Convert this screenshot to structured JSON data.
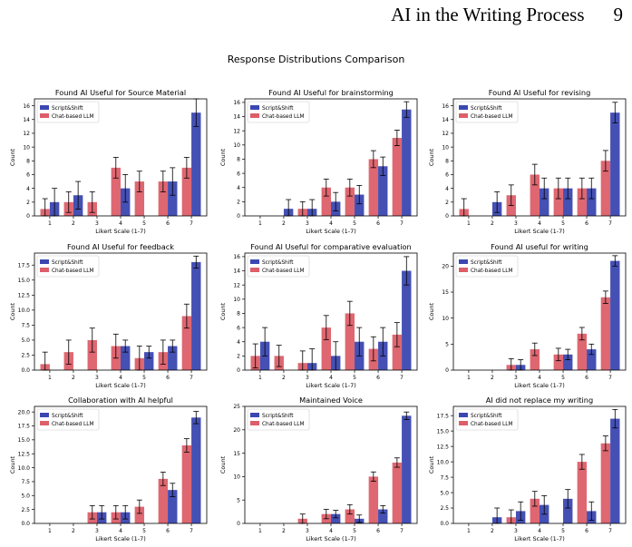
{
  "header": {
    "title": "AI in the Writing Process",
    "page_number": "9"
  },
  "figure_title": "Response Distributions Comparison",
  "colors": {
    "script_shift": "#3b47b0",
    "chat_llm": "#dc5f69"
  },
  "chart_data": [
    {
      "type": "bar",
      "title": "Found AI Useful for Source Material",
      "xlabel": "Likert Scale (1-7)",
      "ylabel": "Count",
      "categories": [
        "1",
        "2",
        "3",
        "4",
        "5",
        "6",
        "7"
      ],
      "ylim": [
        0,
        17
      ],
      "yticks": [
        0,
        2,
        4,
        6,
        8,
        10,
        12,
        14,
        16
      ],
      "ytick_labels": [
        "0",
        "2",
        "4",
        "6",
        "8",
        "10",
        "12",
        "14",
        "16"
      ],
      "legend": "top-left",
      "series": [
        {
          "name": "Script&Shift",
          "values": [
            2,
            3,
            0,
            4,
            0,
            5,
            15
          ],
          "errors": [
            2,
            2,
            0,
            2,
            0,
            2,
            2
          ]
        },
        {
          "name": "Chat-based LLM",
          "values": [
            1,
            2,
            2,
            7,
            5,
            5,
            7
          ],
          "errors": [
            1.5,
            1.5,
            1.5,
            1.5,
            1.5,
            1.5,
            1.5
          ]
        }
      ]
    },
    {
      "type": "bar",
      "title": "Found AI Useful for brainstorming",
      "xlabel": "Likert Scale (1-7)",
      "ylabel": "Count",
      "categories": [
        "1",
        "2",
        "3",
        "4",
        "5",
        "6",
        "7"
      ],
      "ylim": [
        0,
        16.5
      ],
      "yticks": [
        0,
        2,
        4,
        6,
        8,
        10,
        12,
        14,
        16
      ],
      "ytick_labels": [
        "0",
        "2",
        "4",
        "6",
        "8",
        "10",
        "12",
        "14",
        "16"
      ],
      "legend": "top-left",
      "series": [
        {
          "name": "Script&Shift",
          "values": [
            0,
            1,
            1,
            2,
            3,
            7,
            15
          ],
          "errors": [
            0,
            1.3,
            1.3,
            1.3,
            1.3,
            1.3,
            1.1
          ]
        },
        {
          "name": "Chat-based LLM",
          "values": [
            0,
            0,
            1,
            4,
            4,
            8,
            11
          ],
          "errors": [
            0,
            0,
            1,
            1.2,
            1.2,
            1.2,
            1.1
          ]
        }
      ]
    },
    {
      "type": "bar",
      "title": "Found AI Useful for revising",
      "xlabel": "Likert Scale (1-7)",
      "ylabel": "Count",
      "categories": [
        "1",
        "2",
        "3",
        "4",
        "5",
        "6",
        "7"
      ],
      "ylim": [
        0,
        17
      ],
      "yticks": [
        0,
        2,
        4,
        6,
        8,
        10,
        12,
        14,
        16
      ],
      "ytick_labels": [
        "0",
        "2",
        "4",
        "6",
        "8",
        "10",
        "12",
        "14",
        "16"
      ],
      "legend": "top-left",
      "series": [
        {
          "name": "Script&Shift",
          "values": [
            0,
            2,
            0,
            4,
            4,
            4,
            15
          ],
          "errors": [
            0,
            1.5,
            0,
            1.5,
            1.5,
            1.5,
            1.5
          ]
        },
        {
          "name": "Chat-based LLM",
          "values": [
            1,
            0,
            3,
            6,
            4,
            4,
            8
          ],
          "errors": [
            1.5,
            0,
            1.5,
            1.5,
            1.5,
            1.5,
            1.5
          ]
        }
      ]
    },
    {
      "type": "bar",
      "title": "Found AI Useful for feedback",
      "xlabel": "Likert Scale (1-7)",
      "ylabel": "Count",
      "categories": [
        "1",
        "2",
        "3",
        "4",
        "5",
        "6",
        "7"
      ],
      "ylim": [
        0,
        19.5
      ],
      "yticks": [
        0,
        2.5,
        5,
        7.5,
        10,
        12.5,
        15,
        17.5
      ],
      "ytick_labels": [
        "0.0",
        "2.5",
        "5.0",
        "7.5",
        "10.0",
        "12.5",
        "15.0",
        "17.5"
      ],
      "legend": "top-left",
      "series": [
        {
          "name": "Script&Shift",
          "values": [
            0,
            0,
            0,
            4,
            3,
            4,
            18
          ],
          "errors": [
            0,
            0,
            0,
            1,
            1,
            1,
            1
          ]
        },
        {
          "name": "Chat-based LLM",
          "values": [
            1,
            3,
            5,
            4,
            2,
            3,
            9
          ],
          "errors": [
            2,
            2,
            2,
            2,
            2,
            2,
            2
          ]
        }
      ]
    },
    {
      "type": "bar",
      "title": "Found AI Useful for comparative evaluation",
      "xlabel": "Likert Scale (1-7)",
      "ylabel": "Count",
      "categories": [
        "1",
        "2",
        "3",
        "4",
        "5",
        "6",
        "7"
      ],
      "ylim": [
        0,
        16.5
      ],
      "yticks": [
        0,
        2,
        4,
        6,
        8,
        10,
        12,
        14,
        16
      ],
      "ytick_labels": [
        "0",
        "2",
        "4",
        "6",
        "8",
        "10",
        "12",
        "14",
        "16"
      ],
      "legend": "top-left",
      "series": [
        {
          "name": "Script&Shift",
          "values": [
            4,
            0,
            1,
            2,
            4,
            4,
            14
          ],
          "errors": [
            2,
            0,
            2,
            2,
            2,
            2,
            2
          ]
        },
        {
          "name": "Chat-based LLM",
          "values": [
            2,
            2,
            1,
            6,
            8,
            3,
            5
          ],
          "errors": [
            1.7,
            1.5,
            1.7,
            1.7,
            1.7,
            1.7,
            1.7
          ]
        }
      ]
    },
    {
      "type": "bar",
      "title": "Found AI useful for writing",
      "xlabel": "Likert Scale (1-7)",
      "ylabel": "Count",
      "categories": [
        "1",
        "2",
        "3",
        "4",
        "5",
        "6",
        "7"
      ],
      "ylim": [
        0,
        22.5
      ],
      "yticks": [
        0,
        5,
        10,
        15,
        20
      ],
      "ytick_labels": [
        "0",
        "5",
        "10",
        "15",
        "20"
      ],
      "legend": "top-left",
      "series": [
        {
          "name": "Script&Shift",
          "values": [
            0,
            0,
            1,
            0,
            3,
            4,
            21
          ],
          "errors": [
            0,
            0,
            1,
            0,
            1,
            1,
            1
          ]
        },
        {
          "name": "Chat-based LLM",
          "values": [
            0,
            0,
            1,
            4,
            3,
            7,
            14
          ],
          "errors": [
            0,
            0,
            1.2,
            1.2,
            1.2,
            1.2,
            1.2
          ]
        }
      ]
    },
    {
      "type": "bar",
      "title": "Collaboration with AI helpful",
      "xlabel": "Likert Scale (1-7)",
      "ylabel": "Count",
      "categories": [
        "1",
        "2",
        "3",
        "4",
        "5",
        "6",
        "7"
      ],
      "ylim": [
        0,
        21
      ],
      "yticks": [
        0,
        2.5,
        5,
        7.5,
        10,
        12.5,
        15,
        17.5,
        20
      ],
      "ytick_labels": [
        "0.0",
        "2.5",
        "5.0",
        "7.5",
        "10.0",
        "12.5",
        "15.0",
        "17.5",
        "20.0"
      ],
      "legend": "top-left",
      "series": [
        {
          "name": "Script&Shift",
          "values": [
            0,
            0,
            2,
            2,
            0,
            6,
            19
          ],
          "errors": [
            0,
            0,
            1.2,
            1.2,
            0,
            1.2,
            1.1
          ]
        },
        {
          "name": "Chat-based LLM",
          "values": [
            0,
            0,
            2,
            2,
            3,
            8,
            14
          ],
          "errors": [
            0,
            0,
            1.2,
            1.2,
            1.2,
            1.2,
            1.2
          ]
        }
      ]
    },
    {
      "type": "bar",
      "title": "Maintained Voice",
      "xlabel": "Likert Scale (1-7)",
      "ylabel": "Count",
      "categories": [
        "1",
        "2",
        "3",
        "4",
        "5",
        "6",
        "7"
      ],
      "ylim": [
        0,
        25
      ],
      "yticks": [
        0,
        5,
        10,
        15,
        20,
        25
      ],
      "ytick_labels": [
        "0",
        "5",
        "10",
        "15",
        "20",
        "25"
      ],
      "legend": "top-left",
      "series": [
        {
          "name": "Script&Shift",
          "values": [
            0,
            0,
            0,
            2,
            1,
            3,
            23
          ],
          "errors": [
            0,
            0,
            0,
            0.8,
            0.8,
            0.8,
            0.8
          ]
        },
        {
          "name": "Chat-based LLM",
          "values": [
            0,
            0,
            1,
            2,
            3,
            10,
            13
          ],
          "errors": [
            0,
            0,
            1,
            1,
            1,
            1,
            1
          ]
        }
      ]
    },
    {
      "type": "bar",
      "title": "AI did not replace my writing",
      "xlabel": "Likert Scale (1-7)",
      "ylabel": "Count",
      "categories": [
        "1",
        "2",
        "3",
        "4",
        "5",
        "6",
        "7"
      ],
      "ylim": [
        0,
        19
      ],
      "yticks": [
        0,
        2.5,
        5,
        7.5,
        10,
        12.5,
        15,
        17.5
      ],
      "ytick_labels": [
        "0.0",
        "2.5",
        "5.0",
        "7.5",
        "10.0",
        "12.5",
        "15.0",
        "17.5"
      ],
      "legend": "top-left",
      "series": [
        {
          "name": "Script&Shift",
          "values": [
            0,
            1,
            2,
            3,
            4,
            2,
            17
          ],
          "errors": [
            0,
            1.5,
            1.5,
            1.5,
            1.5,
            1.5,
            1.5
          ]
        },
        {
          "name": "Chat-based LLM",
          "values": [
            0,
            0,
            1,
            4,
            0,
            10,
            13
          ],
          "errors": [
            0,
            0,
            1.2,
            1.2,
            0,
            1.2,
            1.2
          ]
        }
      ]
    }
  ]
}
